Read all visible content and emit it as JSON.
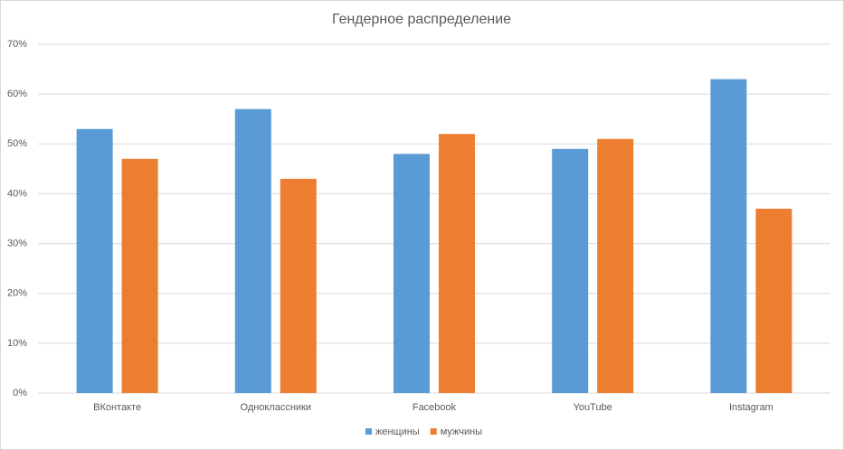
{
  "chart_data": {
    "type": "bar",
    "title": "Гендерное распределение",
    "categories": [
      "ВКонтакте",
      "Одноклассники",
      "Facebook",
      "YouTube",
      "Instagram"
    ],
    "series": [
      {
        "name": "женщины",
        "color": "#5b9bd5",
        "values": [
          53,
          57,
          48,
          49,
          63
        ]
      },
      {
        "name": "мужчины",
        "color": "#ed7d31",
        "values": [
          47,
          43,
          52,
          51,
          37
        ]
      }
    ],
    "ylim": [
      0,
      70
    ],
    "yticks": [
      {
        "value": 0,
        "label": "0%"
      },
      {
        "value": 10,
        "label": "10%"
      },
      {
        "value": 20,
        "label": "20%"
      },
      {
        "value": 30,
        "label": "30%"
      },
      {
        "value": 40,
        "label": "40%"
      },
      {
        "value": 50,
        "label": "50%"
      },
      {
        "value": 60,
        "label": "60%"
      },
      {
        "value": 70,
        "label": "70%"
      }
    ],
    "grid": true,
    "legend": "bottom"
  }
}
